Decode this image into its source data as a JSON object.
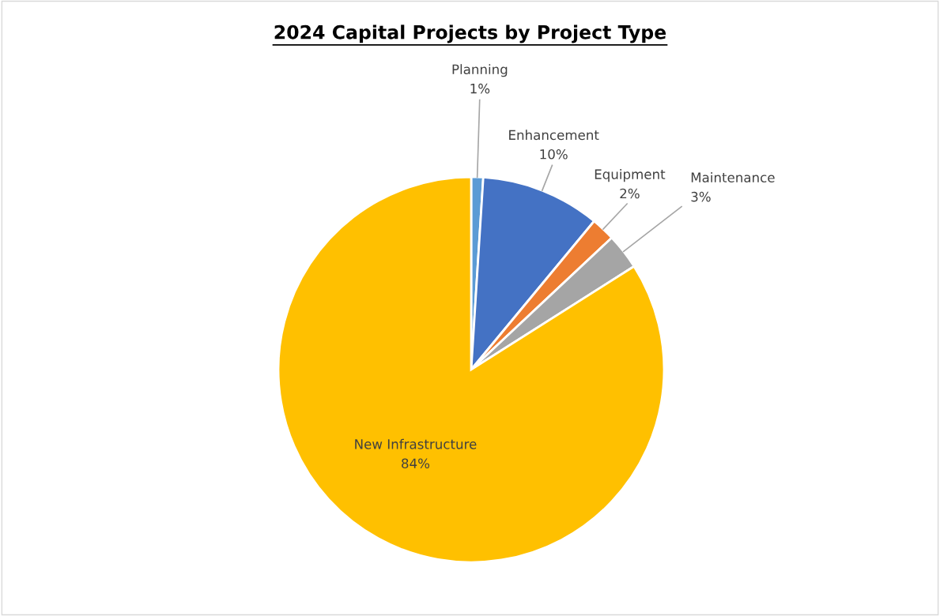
{
  "chart_data": {
    "type": "pie",
    "title": "2024 Capital Projects by Project Type",
    "categories": [
      "Planning",
      "Enhancement",
      "Equipment",
      "Maintenance",
      "New Infrastructure"
    ],
    "values": [
      1,
      10,
      2,
      3,
      84
    ],
    "value_labels": [
      "1%",
      "10%",
      "2%",
      "3%",
      "84%"
    ],
    "colors": [
      "#5b9bd5",
      "#4472c4",
      "#ed7d31",
      "#a5a5a5",
      "#ffc000"
    ],
    "legend": false
  }
}
